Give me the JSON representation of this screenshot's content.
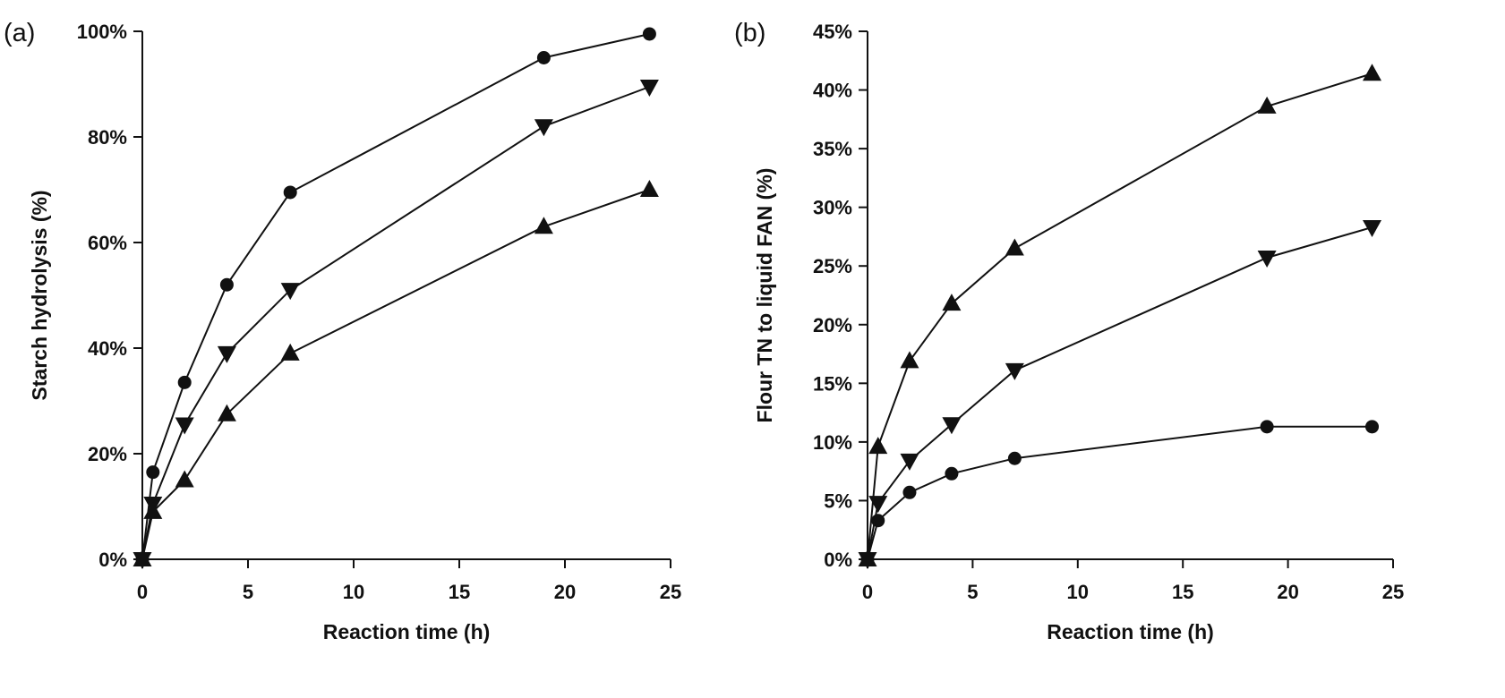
{
  "chart_data": [
    {
      "panel_label": "(a)",
      "type": "line",
      "xlabel": "Reaction time (h)",
      "ylabel": "Starch hydrolysis (%)",
      "xlim": [
        0,
        25
      ],
      "ylim": [
        0,
        100
      ],
      "x_ticks": [
        "0",
        "5",
        "10",
        "15",
        "20",
        "25"
      ],
      "y_ticks": [
        "0%",
        "20%",
        "40%",
        "60%",
        "80%",
        "100%"
      ],
      "grid": false,
      "x": [
        0,
        0.5,
        2,
        4,
        7,
        19,
        24
      ],
      "series": [
        {
          "marker": "circle",
          "values": [
            0,
            16.5,
            33.5,
            52,
            69.5,
            95,
            99.5
          ]
        },
        {
          "marker": "triangle-down",
          "values": [
            0,
            10.5,
            25.5,
            39,
            51,
            82,
            89.5
          ]
        },
        {
          "marker": "triangle-up",
          "values": [
            0,
            9,
            15,
            27.5,
            39,
            63,
            70
          ]
        }
      ]
    },
    {
      "panel_label": "(b)",
      "type": "line",
      "xlabel": "Reaction time (h)",
      "ylabel": "Flour TN to liquid FAN (%)",
      "xlim": [
        0,
        25
      ],
      "ylim": [
        0,
        45
      ],
      "x_ticks": [
        "0",
        "5",
        "10",
        "15",
        "20",
        "25"
      ],
      "y_ticks": [
        "0%",
        "5%",
        "10%",
        "15%",
        "20%",
        "25%",
        "30%",
        "35%",
        "40%",
        "45%"
      ],
      "grid": false,
      "x": [
        0,
        0.5,
        2,
        4,
        7,
        19,
        24
      ],
      "series": [
        {
          "marker": "circle",
          "values": [
            0,
            3.3,
            5.7,
            7.3,
            8.6,
            11.3,
            11.3
          ]
        },
        {
          "marker": "triangle-down",
          "values": [
            0,
            4.8,
            8.4,
            11.5,
            16.1,
            25.7,
            28.3
          ]
        },
        {
          "marker": "triangle-up",
          "values": [
            0,
            9.6,
            16.9,
            21.8,
            26.5,
            38.6,
            41.4
          ]
        }
      ]
    }
  ]
}
